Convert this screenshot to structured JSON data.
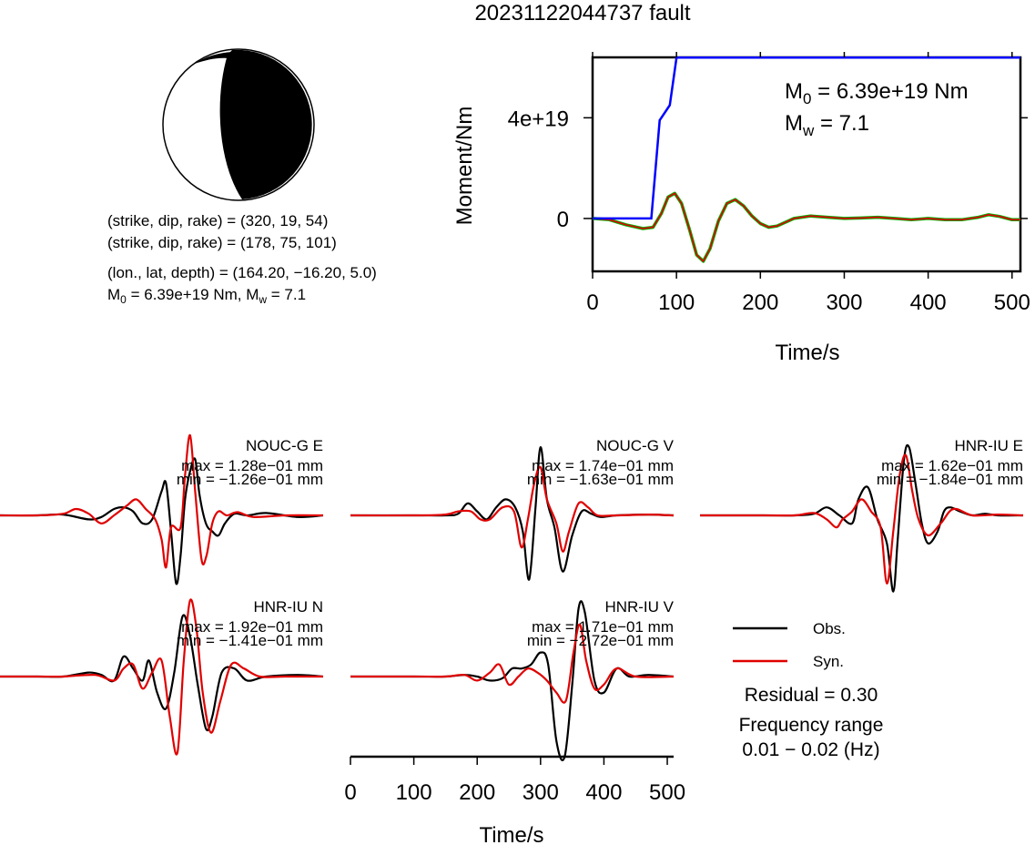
{
  "title": "20231122044737 fault",
  "beachball": {
    "strike1": 320,
    "dip1": 19,
    "rake1": 54,
    "strike2": 178,
    "dip2": 75,
    "rake2": 101
  },
  "info": {
    "line1": "(strike, dip, rake) = (320, 19, 54)",
    "line2": "(strike, dip, rake) = (178, 75, 101)",
    "line3": "(lon., lat, depth) = (164.20, −16.20, 5.0)",
    "line4_prefix": "M",
    "line4_sub": "0",
    "line4_rest": " = 6.39e+19 Nm, M",
    "line4_sub2": "w",
    "line4_end": " = 7.1"
  },
  "moment_panel": {
    "ylabel": "Moment/Nm",
    "xlabel": "Time/s",
    "m0_text": " = 6.39e+19 Nm",
    "mw_text": " = 7.1",
    "m_label": "M",
    "m0_sub": "0",
    "mw_sub": "w"
  },
  "legend": {
    "obs": "Obs.",
    "syn": "Syn.",
    "residual": "Residual = 0.30",
    "freq1": "Frequency range",
    "freq2": "0.01 − 0.02 (Hz)"
  },
  "waveform_xlabel": "Time/s",
  "colors": {
    "obs": "#000000",
    "syn": "#e00000",
    "moment": "#0000ff",
    "stf_green": "#00b000"
  },
  "chart_data": [
    {
      "type": "line",
      "name": "moment-function",
      "xlabel": "Time/s",
      "ylabel": "Moment/Nm",
      "xlim": [
        0,
        510
      ],
      "ylim": [
        -2.1e+19,
        6.4e+19
      ],
      "xticks": [
        0,
        100,
        200,
        300,
        400,
        500
      ],
      "yticks": [
        {
          "v": 0,
          "label": "0"
        },
        {
          "v": 4e+19,
          "label": "4e+19"
        }
      ],
      "series": [
        {
          "kind": "moment",
          "x": [
            0,
            70,
            80,
            92,
            100,
            510
          ],
          "y": [
            0,
            0,
            3.9e+19,
            4.5e+19,
            6.39e+19,
            6.39e+19
          ]
        },
        {
          "kind": "rate",
          "x": [
            0,
            20,
            40,
            60,
            72,
            82,
            90,
            98,
            106,
            116,
            124,
            132,
            140,
            150,
            160,
            170,
            180,
            190,
            200,
            210,
            220,
            240,
            260,
            280,
            300,
            320,
            340,
            360,
            380,
            400,
            420,
            440,
            460,
            472,
            485,
            500,
            510
          ],
          "y": [
            0,
            -5e+17,
            -2.5e+18,
            -4e+18,
            -3.5e+18,
            2e+18,
            8.5e+18,
            1e+19,
            6e+18,
            -5e+18,
            -1.45e+19,
            -1.7e+19,
            -1.2e+19,
            -1e+18,
            6e+18,
            7.5e+18,
            5e+18,
            1e+18,
            -2e+18,
            -3.5e+18,
            -3e+18,
            0,
            1e+18,
            5e+17,
            0,
            2e+17,
            5e+17,
            0,
            -5e+17,
            0,
            -5e+17,
            -5e+17,
            5e+17,
            1.5e+18,
            8e+17,
            -5e+17,
            -5e+17
          ]
        }
      ]
    },
    {
      "type": "line",
      "name": "waveforms",
      "xlabel": "Time/s",
      "xlim": [
        0,
        510
      ],
      "xticks": [
        0,
        100,
        200,
        300,
        400,
        500
      ],
      "traces": [
        {
          "station": "NOUC-G E",
          "max": "max = 1.28e−01 mm",
          "min": "min = −1.26e−01 mm",
          "obs": {
            "x": [
              0,
              60,
              100,
              140,
              160,
              180,
              195,
              210,
              225,
              240,
              255,
              262,
              270,
              278,
              285,
              292,
              300,
              308,
              315,
              325,
              335,
              345,
              355,
              370,
              390,
              420,
              470,
              510
            ],
            "y": [
              0,
              0,
              0.01,
              -0.05,
              -0.02,
              0.08,
              0.1,
              0.05,
              -0.1,
              -0.05,
              0.3,
              0.4,
              -0.2,
              -0.85,
              -0.5,
              0.2,
              0.55,
              0.7,
              0.25,
              -0.1,
              -0.2,
              -0.25,
              -0.1,
              0.02,
              0,
              0.03,
              -0.02,
              0
            ]
          },
          "syn": {
            "x": [
              0,
              60,
              100,
              120,
              140,
              160,
              180,
              200,
              215,
              230,
              245,
              255,
              262,
              270,
              285,
              292,
              300,
              308,
              318,
              326,
              335,
              345,
              358,
              375,
              400,
              450,
              510
            ],
            "y": [
              0,
              0,
              0.02,
              0.08,
              0.02,
              -0.1,
              0.0,
              0.12,
              0.2,
              0.08,
              -0.05,
              -0.3,
              -0.65,
              -0.15,
              -0.15,
              0.5,
              1.0,
              0.3,
              -0.55,
              -0.5,
              -0.1,
              0.05,
              0,
              0.04,
              -0.02,
              0,
              0
            ]
          }
        },
        {
          "station": "NOUC-G V",
          "max": "max = 1.74e−01 mm",
          "min": "min = −1.63e−01 mm",
          "obs": {
            "x": [
              0,
              100,
              150,
              170,
              185,
              200,
              215,
              230,
              245,
              260,
              272,
              282,
              292,
              300,
              310,
              322,
              335,
              350,
              365,
              380,
              395,
              420,
              470,
              510
            ],
            "y": [
              0,
              0,
              0,
              0.02,
              0.15,
              0.05,
              -0.05,
              0.1,
              0.2,
              0.1,
              -0.2,
              -0.8,
              0.1,
              0.85,
              0.2,
              -0.15,
              -0.7,
              -0.25,
              0.05,
              0.02,
              -0.02,
              0,
              0.01,
              0
            ]
          },
          "syn": {
            "x": [
              0,
              100,
              150,
              170,
              190,
              205,
              220,
              240,
              258,
              270,
              280,
              290,
              300,
              310,
              325,
              335,
              345,
              360,
              375,
              390,
              420,
              470,
              510
            ],
            "y": [
              0,
              0,
              0.01,
              0.05,
              0.05,
              -0.05,
              -0.05,
              0.1,
              0.05,
              -0.4,
              -0.05,
              0.4,
              0.6,
              0.2,
              -0.1,
              -0.45,
              -0.2,
              0.15,
              0.1,
              0,
              0,
              0.01,
              0
            ]
          }
        },
        {
          "station": "HNR-IU E",
          "max": "max = 1.62e−01 mm",
          "min": "min = −1.84e−01 mm",
          "obs": {
            "x": [
              0,
              100,
              150,
              180,
              200,
              220,
              240,
              250,
              265,
              280,
              295,
              305,
              312,
              322,
              330,
              340,
              350,
              360,
              375,
              385,
              395,
              410,
              430,
              450,
              470,
              510
            ],
            "y": [
              0,
              0,
              0,
              0.02,
              0.1,
              0,
              -0.1,
              0.2,
              0.35,
              -0.05,
              -0.35,
              -0.95,
              -0.3,
              0.7,
              0.85,
              0.4,
              -0.1,
              -0.35,
              -0.2,
              0.05,
              0.1,
              0.05,
              0,
              0.02,
              0,
              0
            ]
          },
          "syn": {
            "x": [
              0,
              100,
              150,
              180,
              200,
              215,
              225,
              240,
              255,
              270,
              285,
              295,
              305,
              315,
              325,
              335,
              345,
              360,
              380,
              400,
              430,
              470,
              510
            ],
            "y": [
              0,
              0,
              0,
              0.03,
              -0.05,
              -0.15,
              -0.05,
              0.05,
              0.2,
              0.05,
              -0.15,
              -0.85,
              -0.2,
              0.5,
              0.75,
              0.3,
              -0.05,
              -0.25,
              -0.1,
              0.08,
              0,
              0.01,
              0
            ]
          }
        },
        {
          "station": "HNR-IU N",
          "max": "max = 1.92e−01 mm",
          "min": "min = −1.41e−01 mm",
          "obs": {
            "x": [
              0,
              60,
              100,
              140,
              160,
              180,
              195,
              210,
              225,
              235,
              248,
              262,
              275,
              288,
              300,
              312,
              325,
              335,
              350,
              370,
              390,
              420,
              470,
              510
            ],
            "y": [
              0,
              0,
              0,
              0.05,
              0.02,
              -0.05,
              0.25,
              0.1,
              -0.05,
              0.2,
              -0.2,
              -0.4,
              0.05,
              0.75,
              0.5,
              -0.1,
              -0.65,
              -0.5,
              0.05,
              0.1,
              -0.05,
              0,
              0.02,
              0
            ]
          },
          "syn": {
            "x": [
              0,
              60,
              100,
              150,
              180,
              195,
              210,
              225,
              240,
              255,
              268,
              280,
              290,
              300,
              310,
              320,
              333,
              348,
              365,
              385,
              410,
              450,
              510
            ],
            "y": [
              0,
              0,
              0,
              0.02,
              -0.05,
              0.1,
              0.15,
              -0.15,
              0.05,
              0.2,
              -0.5,
              -0.95,
              0.2,
              0.95,
              0.6,
              -0.2,
              -0.7,
              -0.3,
              0.15,
              0.1,
              0,
              0,
              0
            ]
          }
        },
        {
          "station": "HNR-IU V",
          "max": "max = 1.71e−01 mm",
          "min": "min = −2.72e−01 mm",
          "obs": {
            "x": [
              0,
              100,
              150,
              180,
              200,
              220,
              240,
              255,
              270,
              285,
              300,
              312,
              325,
              338,
              350,
              360,
              370,
              385,
              400,
              420,
              440,
              470,
              510
            ],
            "y": [
              0,
              0,
              0,
              0.02,
              0,
              -0.05,
              -0.02,
              0.1,
              0.1,
              0.15,
              0.3,
              0.15,
              -0.8,
              -1.0,
              -0.1,
              0.85,
              0.8,
              -0.05,
              -0.2,
              0.1,
              0,
              0.02,
              0
            ]
          },
          "syn": {
            "x": [
              0,
              100,
              150,
              180,
              200,
              220,
              235,
              250,
              265,
              280,
              295,
              310,
              325,
              340,
              352,
              362,
              372,
              385,
              400,
              420,
              450,
              510
            ],
            "y": [
              0,
              0,
              0,
              0.02,
              -0.05,
              0.05,
              0.15,
              -0.1,
              0,
              0.1,
              0.05,
              -0.05,
              -0.2,
              -0.3,
              0.3,
              0.65,
              0.2,
              -0.15,
              -0.1,
              0.1,
              0,
              0
            ]
          }
        }
      ]
    }
  ]
}
